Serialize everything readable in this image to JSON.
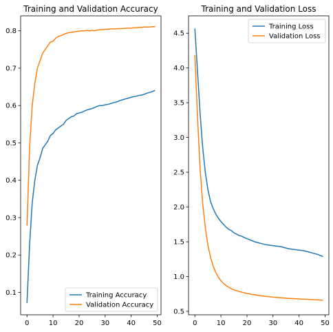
{
  "chart_data": [
    {
      "type": "line",
      "title": "Training and Validation Accuracy",
      "xlabel": "",
      "ylabel": "",
      "xlim": [
        -2.45,
        51.45
      ],
      "ylim": [
        0.04,
        0.84
      ],
      "xticks": [
        0,
        10,
        20,
        30,
        40,
        50
      ],
      "yticks": [
        0.1,
        0.2,
        0.3,
        0.4,
        0.5,
        0.6,
        0.7,
        0.8
      ],
      "xtick_labels": [
        "0",
        "10",
        "20",
        "30",
        "40",
        "50"
      ],
      "ytick_labels": [
        "0.1",
        "0.2",
        "0.3",
        "0.4",
        "0.5",
        "0.6",
        "0.7",
        "0.8"
      ],
      "grid": false,
      "legend_position": "lower-right",
      "x": [
        0,
        1,
        2,
        3,
        4,
        5,
        6,
        7,
        8,
        9,
        10,
        11,
        12,
        13,
        14,
        15,
        16,
        17,
        18,
        19,
        20,
        21,
        22,
        23,
        24,
        25,
        26,
        27,
        28,
        29,
        30,
        31,
        32,
        33,
        34,
        35,
        36,
        37,
        38,
        39,
        40,
        41,
        42,
        43,
        44,
        45,
        46,
        47,
        48,
        49
      ],
      "series": [
        {
          "name": "Training Accuracy",
          "color": "#1f77b4",
          "values": [
            0.073,
            0.23,
            0.34,
            0.4,
            0.44,
            0.46,
            0.485,
            0.495,
            0.505,
            0.52,
            0.525,
            0.535,
            0.54,
            0.545,
            0.55,
            0.56,
            0.565,
            0.57,
            0.572,
            0.578,
            0.58,
            0.582,
            0.585,
            0.588,
            0.59,
            0.592,
            0.595,
            0.598,
            0.6,
            0.6,
            0.602,
            0.603,
            0.605,
            0.607,
            0.609,
            0.611,
            0.614,
            0.616,
            0.618,
            0.62,
            0.622,
            0.624,
            0.625,
            0.627,
            0.628,
            0.63,
            0.633,
            0.635,
            0.637,
            0.64
          ]
        },
        {
          "name": "Validation Accuracy",
          "color": "#ff7f0e",
          "values": [
            0.28,
            0.49,
            0.6,
            0.66,
            0.7,
            0.72,
            0.74,
            0.75,
            0.76,
            0.77,
            0.772,
            0.78,
            0.785,
            0.787,
            0.79,
            0.793,
            0.795,
            0.796,
            0.797,
            0.798,
            0.799,
            0.8,
            0.8,
            0.801,
            0.8,
            0.801,
            0.8,
            0.802,
            0.803,
            0.803,
            0.804,
            0.804,
            0.805,
            0.805,
            0.805,
            0.806,
            0.806,
            0.806,
            0.807,
            0.807,
            0.807,
            0.808,
            0.808,
            0.809,
            0.809,
            0.81,
            0.81,
            0.81,
            0.811,
            0.811
          ]
        }
      ]
    },
    {
      "type": "line",
      "title": "Training and Validation Loss",
      "xlabel": "",
      "ylabel": "",
      "xlim": [
        -2.45,
        51.45
      ],
      "ylim": [
        0.45,
        4.75
      ],
      "xticks": [
        0,
        10,
        20,
        30,
        40,
        50
      ],
      "yticks": [
        0.5,
        1.0,
        1.5,
        2.0,
        2.5,
        3.0,
        3.5,
        4.0,
        4.5
      ],
      "xtick_labels": [
        "0",
        "10",
        "20",
        "30",
        "40",
        "50"
      ],
      "ytick_labels": [
        "0.5",
        "1.0",
        "1.5",
        "2.0",
        "2.5",
        "3.0",
        "3.5",
        "4.0",
        "4.5"
      ],
      "grid": false,
      "legend_position": "upper-right",
      "x": [
        0,
        1,
        2,
        3,
        4,
        5,
        6,
        7,
        8,
        9,
        10,
        11,
        12,
        13,
        14,
        15,
        16,
        17,
        18,
        19,
        20,
        21,
        22,
        23,
        24,
        25,
        26,
        27,
        28,
        29,
        30,
        31,
        32,
        33,
        34,
        35,
        36,
        37,
        38,
        39,
        40,
        41,
        42,
        43,
        44,
        45,
        46,
        47,
        48,
        49
      ],
      "series": [
        {
          "name": "Training Loss",
          "color": "#1f77b4",
          "values": [
            4.56,
            3.95,
            3.35,
            2.85,
            2.5,
            2.25,
            2.08,
            1.98,
            1.9,
            1.84,
            1.79,
            1.75,
            1.71,
            1.68,
            1.66,
            1.63,
            1.61,
            1.59,
            1.58,
            1.56,
            1.545,
            1.53,
            1.515,
            1.5,
            1.49,
            1.48,
            1.47,
            1.46,
            1.455,
            1.45,
            1.445,
            1.44,
            1.435,
            1.43,
            1.42,
            1.41,
            1.4,
            1.395,
            1.39,
            1.385,
            1.38,
            1.375,
            1.37,
            1.36,
            1.35,
            1.34,
            1.33,
            1.32,
            1.305,
            1.29
          ]
        },
        {
          "name": "Validation Loss",
          "color": "#ff7f0e",
          "values": [
            4.18,
            3.3,
            2.55,
            2.05,
            1.7,
            1.45,
            1.28,
            1.15,
            1.06,
            0.99,
            0.94,
            0.9,
            0.87,
            0.845,
            0.825,
            0.81,
            0.795,
            0.785,
            0.775,
            0.765,
            0.757,
            0.75,
            0.743,
            0.737,
            0.731,
            0.726,
            0.721,
            0.716,
            0.712,
            0.708,
            0.704,
            0.701,
            0.698,
            0.695,
            0.692,
            0.689,
            0.686,
            0.684,
            0.682,
            0.68,
            0.678,
            0.676,
            0.674,
            0.672,
            0.67,
            0.668,
            0.666,
            0.664,
            0.662,
            0.66
          ]
        }
      ]
    }
  ]
}
